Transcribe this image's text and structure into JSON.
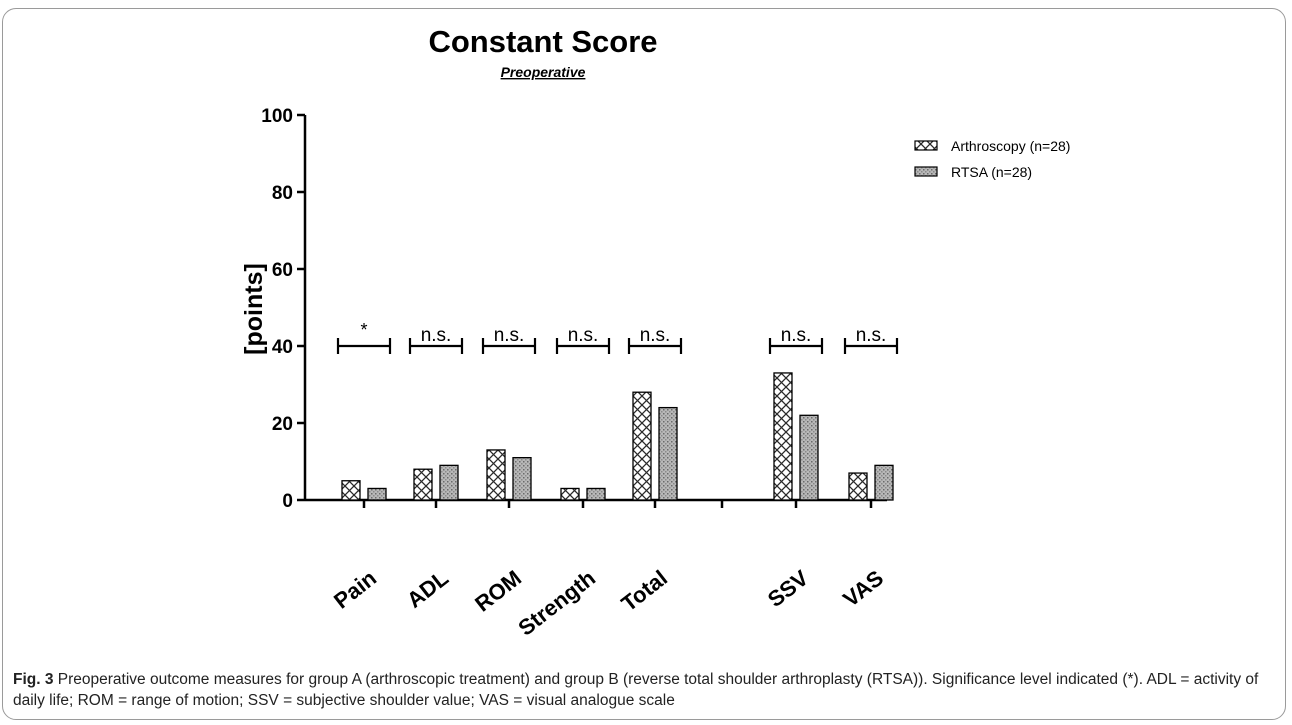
{
  "chart_data": {
    "type": "bar",
    "title": "Constant Score",
    "subtitle": "Preoperative",
    "ylabel": "[points]",
    "xlabel": "",
    "ylim": [
      0,
      100
    ],
    "yticks": [
      0,
      20,
      40,
      60,
      80,
      100
    ],
    "grid": false,
    "legend_position": "top-right",
    "categories": [
      "Pain",
      "ADL",
      "ROM",
      "Strength",
      "Total",
      "SSV",
      "VAS"
    ],
    "series": [
      {
        "name": "Arthroscopy  (n=28)",
        "pattern": "crosshatch",
        "values": [
          5,
          8,
          13,
          3,
          28,
          33,
          7
        ]
      },
      {
        "name": "RTSA (n=28)",
        "pattern": "dotted-grey",
        "values": [
          3,
          9,
          11,
          3,
          24,
          22,
          9
        ]
      }
    ],
    "significance": [
      "*",
      "n.s.",
      "n.s.",
      "n.s.",
      "n.s.",
      "n.s.",
      "n.s."
    ],
    "significance_level": 40
  },
  "caption": {
    "label": "Fig. 3",
    "text": " Preoperative outcome measures for group A (arthroscopic treatment) and group B (reverse total shoulder arthroplasty (RTSA)). Significance level indicated (*). ADL = activity of daily life; ROM = range of motion; SSV = subjective shoulder value; VAS = visual analogue scale"
  }
}
